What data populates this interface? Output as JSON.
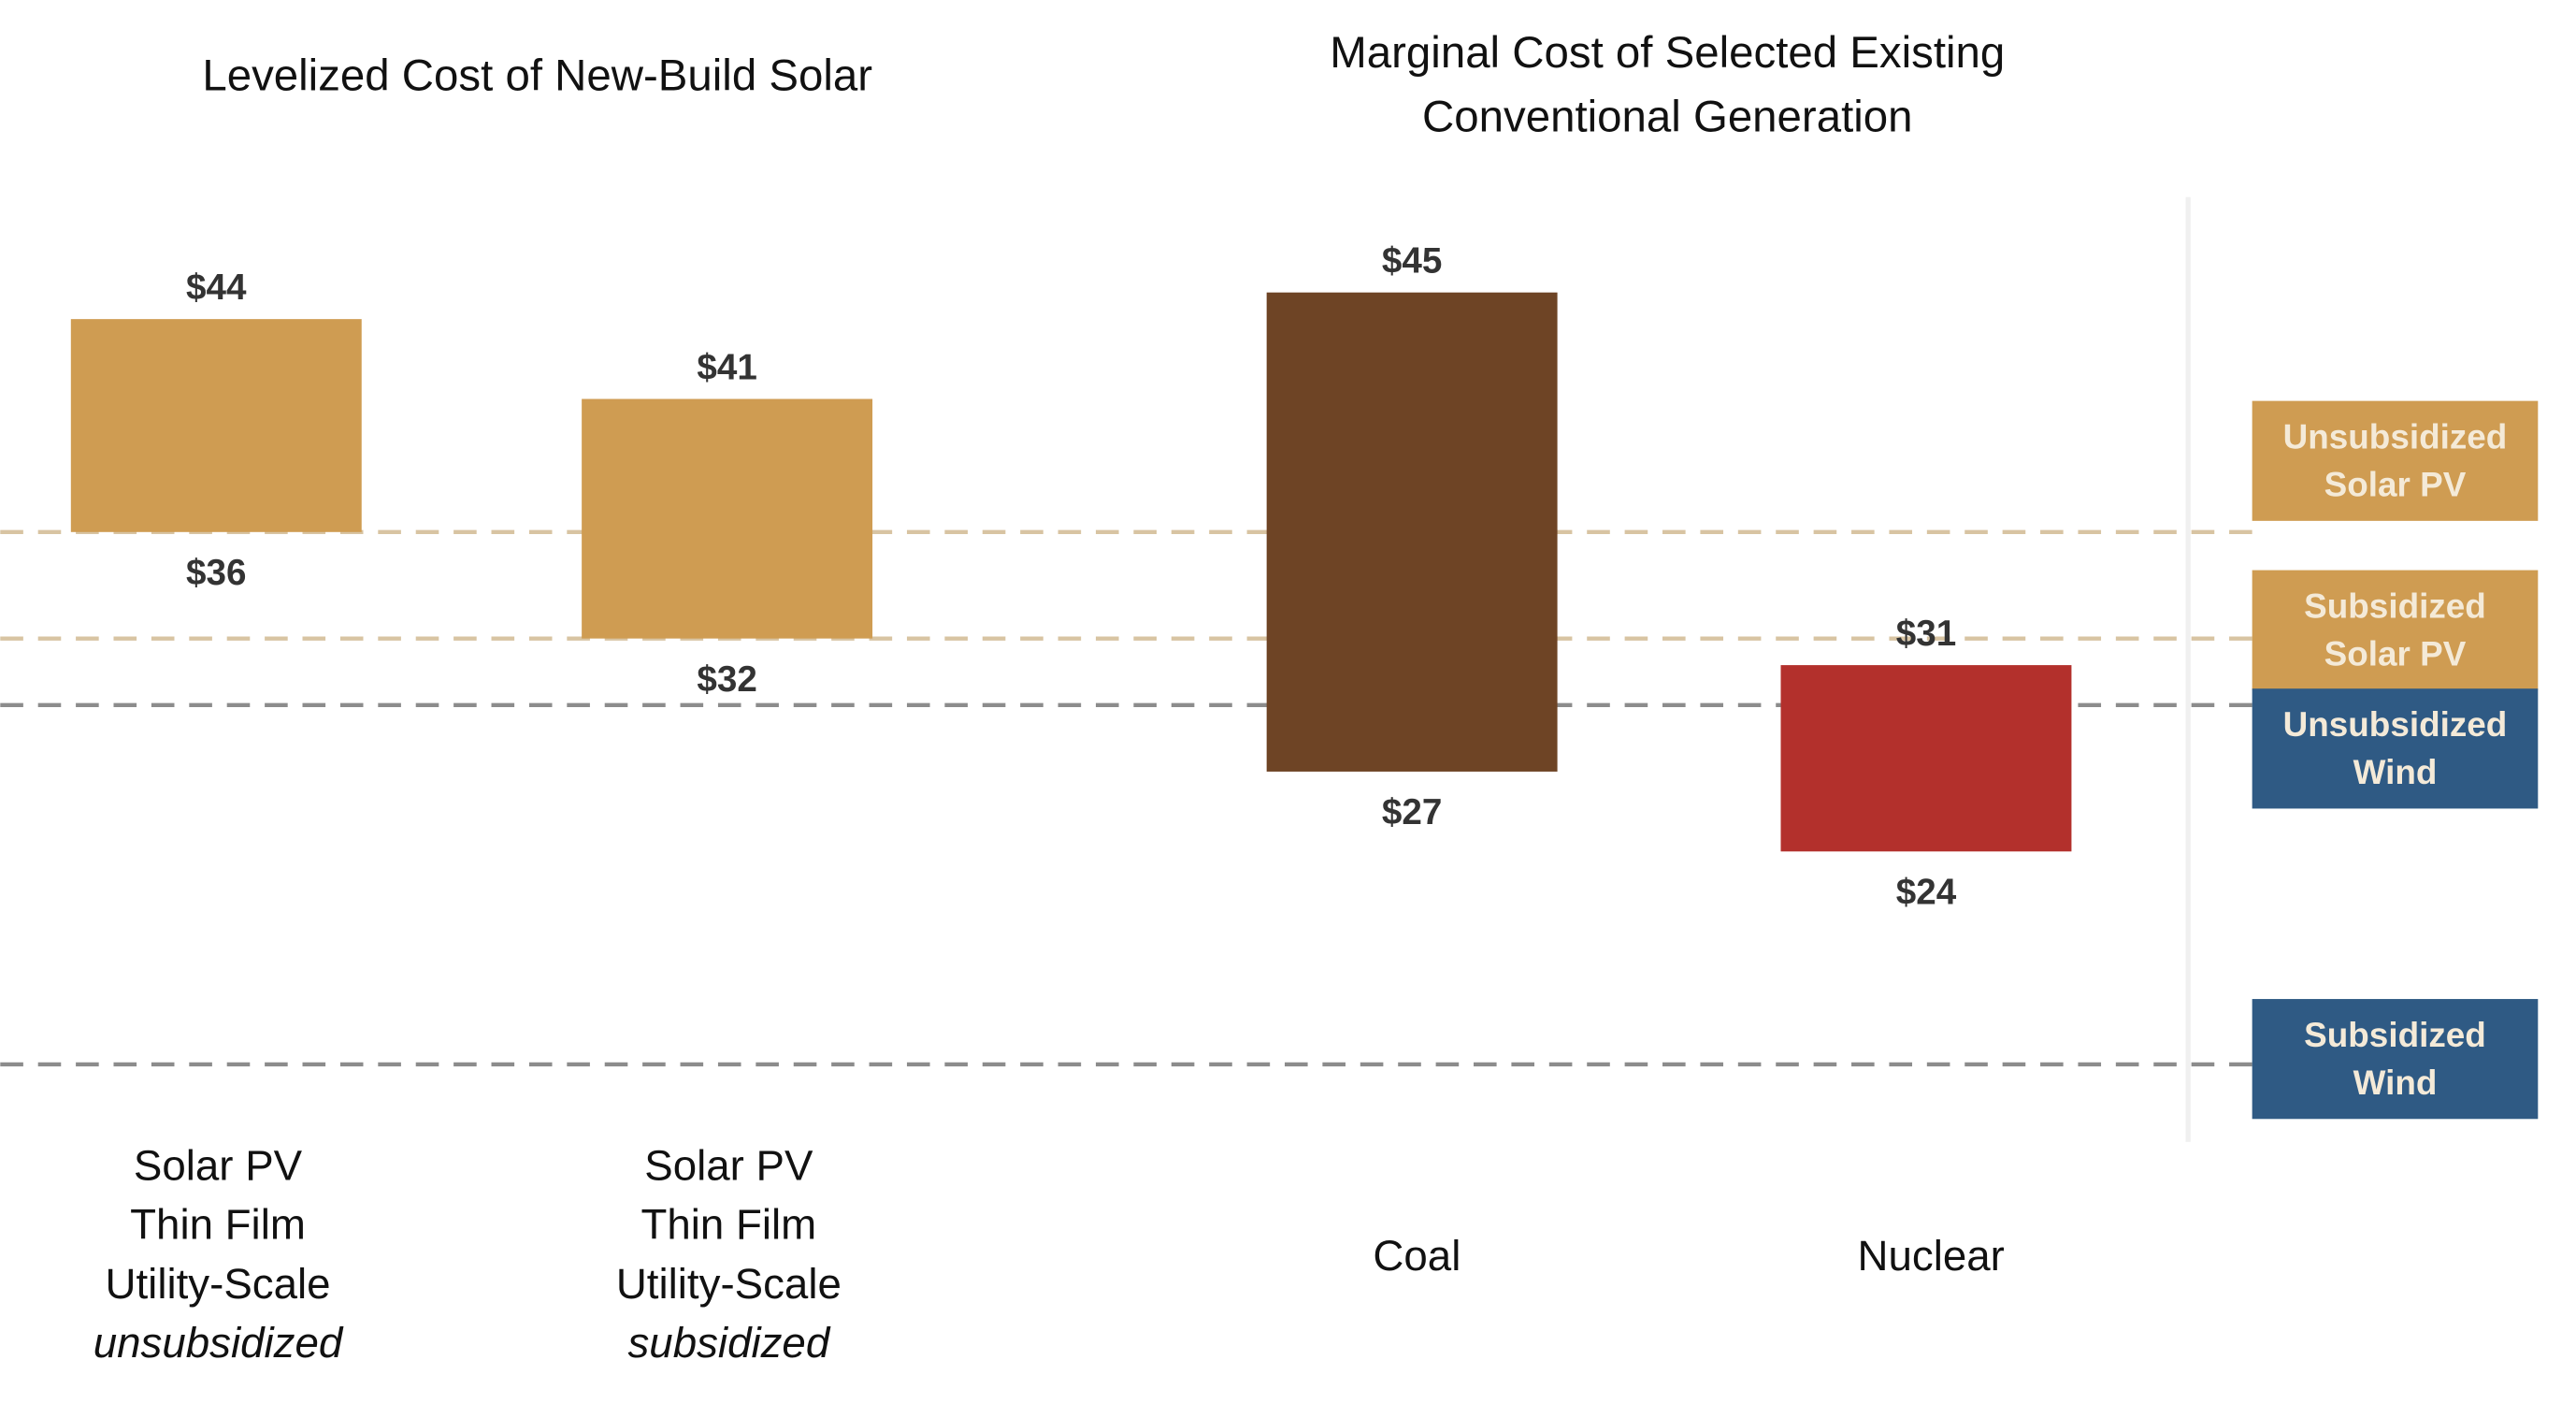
{
  "chart_data": {
    "type": "bar",
    "subtype": "floating-range",
    "groups": [
      {
        "title": "Levelized Cost of New-Build Solar"
      },
      {
        "title_lines": [
          "Marginal Cost of Selected Existing",
          "Conventional Generation"
        ]
      }
    ],
    "bars": [
      {
        "label_lines": [
          "Solar PV",
          "Thin Film",
          "Utility-Scale"
        ],
        "qualifier": "unsubsidized",
        "low": 36,
        "high": 44,
        "low_label": "$36",
        "high_label": "$44",
        "color": "#CF9C52"
      },
      {
        "label_lines": [
          "Solar PV",
          "Thin Film",
          "Utility-Scale"
        ],
        "qualifier": "subsidized",
        "low": 32,
        "high": 41,
        "low_label": "$32",
        "high_label": "$41",
        "color": "#CF9C52"
      },
      {
        "label_lines": [
          "Coal"
        ],
        "qualifier": "",
        "low": 27,
        "high": 45,
        "low_label": "$27",
        "high_label": "$45",
        "color": "#6E4425"
      },
      {
        "label_lines": [
          "Nuclear"
        ],
        "qualifier": "",
        "low": 24,
        "high": 31,
        "low_label": "$24",
        "high_label": "$31",
        "color": "#B3302C"
      }
    ],
    "reference_lines": [
      {
        "label_lines": [
          "Unsubsidized",
          "Solar PV"
        ],
        "value": 36,
        "color": "#CF9C52",
        "line_color": "#D8C4A2"
      },
      {
        "label_lines": [
          "Subsidized",
          "Solar PV"
        ],
        "value": 32,
        "color": "#CF9C52",
        "line_color": "#D8C4A2"
      },
      {
        "label_lines": [
          "Unsubsidized",
          "Wind"
        ],
        "value": 29.5,
        "color": "#2F5A84",
        "line_color": "#8C8C8C"
      },
      {
        "label_lines": [
          "Subsidized",
          "Wind"
        ],
        "value": 16,
        "color": "#2F5A84",
        "line_color": "#8C8C8C"
      }
    ],
    "unit": "$",
    "grid": false,
    "legend_placement": "right"
  }
}
